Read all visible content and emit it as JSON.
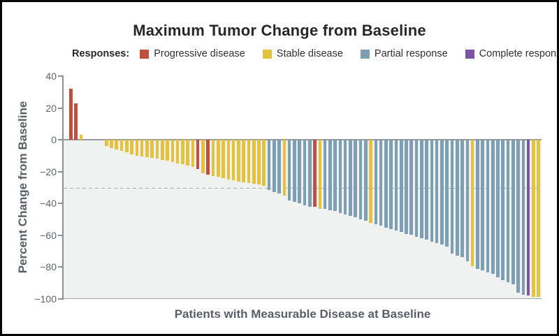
{
  "title": "Maximum Tumor Change from Baseline",
  "legend": {
    "label": "Responses:",
    "items": [
      {
        "label": "Progressive disease",
        "color": "#bf4f3f",
        "key": "PD"
      },
      {
        "label": "Stable disease",
        "color": "#e4c23e",
        "key": "SD"
      },
      {
        "label": "Partial response",
        "color": "#7d9eb3",
        "key": "PR"
      },
      {
        "label": "Complete response",
        "color": "#7b54a5",
        "key": "CR"
      }
    ]
  },
  "chart_data": {
    "type": "bar",
    "subtype": "waterfall",
    "title": "Maximum Tumor Change from Baseline",
    "xlabel": "Patients with Measurable Disease at Baseline",
    "ylabel": "Percent Change from Baseline",
    "ylim": [
      -100,
      40
    ],
    "yticks": [
      40,
      20,
      0,
      -20,
      -40,
      -60,
      -80,
      -100
    ],
    "reference_line": -30,
    "grid": false,
    "legend_position": "top",
    "colors": {
      "PD": "#bf4f3f",
      "SD": "#e4c23e",
      "PR": "#7d9eb3",
      "CR": "#7b54a5"
    },
    "response_names": {
      "PD": "Progressive disease",
      "SD": "Stable disease",
      "PR": "Partial response",
      "CR": "Complete response"
    },
    "bars": [
      {
        "v": 32,
        "r": "PD"
      },
      {
        "v": 23,
        "r": "PD"
      },
      {
        "v": 3,
        "r": "SD"
      },
      {
        "v": 0,
        "r": "SD"
      },
      {
        "v": 0,
        "r": "SD"
      },
      {
        "v": 0,
        "r": "SD"
      },
      {
        "v": 0,
        "r": "SD"
      },
      {
        "v": -4,
        "r": "SD"
      },
      {
        "v": -5,
        "r": "SD"
      },
      {
        "v": -6,
        "r": "SD"
      },
      {
        "v": -7,
        "r": "SD"
      },
      {
        "v": -8,
        "r": "SD"
      },
      {
        "v": -9,
        "r": "SD"
      },
      {
        "v": -10,
        "r": "SD"
      },
      {
        "v": -10.5,
        "r": "SD"
      },
      {
        "v": -11,
        "r": "SD"
      },
      {
        "v": -11.5,
        "r": "SD"
      },
      {
        "v": -12,
        "r": "SD"
      },
      {
        "v": -12.5,
        "r": "SD"
      },
      {
        "v": -13.3,
        "r": "SD"
      },
      {
        "v": -14,
        "r": "SD"
      },
      {
        "v": -14.7,
        "r": "SD"
      },
      {
        "v": -15.5,
        "r": "SD"
      },
      {
        "v": -16.3,
        "r": "SD"
      },
      {
        "v": -17.2,
        "r": "SD"
      },
      {
        "v": -18.3,
        "r": "PD"
      },
      {
        "v": -20.9,
        "r": "SD"
      },
      {
        "v": -21.7,
        "r": "PD"
      },
      {
        "v": -22.7,
        "r": "SD"
      },
      {
        "v": -23.4,
        "r": "SD"
      },
      {
        "v": -24.1,
        "r": "SD"
      },
      {
        "v": -24.9,
        "r": "SD"
      },
      {
        "v": -25.5,
        "r": "SD"
      },
      {
        "v": -26.1,
        "r": "SD"
      },
      {
        "v": -26.6,
        "r": "SD"
      },
      {
        "v": -27.1,
        "r": "SD"
      },
      {
        "v": -27.6,
        "r": "SD"
      },
      {
        "v": -28.1,
        "r": "SD"
      },
      {
        "v": -28.7,
        "r": "SD"
      },
      {
        "v": -31.5,
        "r": "PR"
      },
      {
        "v": -32.7,
        "r": "PR"
      },
      {
        "v": -33.7,
        "r": "PR"
      },
      {
        "v": -35.2,
        "r": "SD"
      },
      {
        "v": -38.1,
        "r": "PR"
      },
      {
        "v": -39,
        "r": "PR"
      },
      {
        "v": -40,
        "r": "PR"
      },
      {
        "v": -41,
        "r": "PR"
      },
      {
        "v": -41.9,
        "r": "PR"
      },
      {
        "v": -42.2,
        "r": "PD"
      },
      {
        "v": -43.2,
        "r": "SD"
      },
      {
        "v": -43.6,
        "r": "PR"
      },
      {
        "v": -44.1,
        "r": "PR"
      },
      {
        "v": -44.8,
        "r": "PR"
      },
      {
        "v": -45.9,
        "r": "PR"
      },
      {
        "v": -46.9,
        "r": "PR"
      },
      {
        "v": -47.8,
        "r": "PR"
      },
      {
        "v": -48.8,
        "r": "PR"
      },
      {
        "v": -49.8,
        "r": "PR"
      },
      {
        "v": -51,
        "r": "PR"
      },
      {
        "v": -52.1,
        "r": "SD"
      },
      {
        "v": -53.1,
        "r": "PR"
      },
      {
        "v": -53.9,
        "r": "PR"
      },
      {
        "v": -55.1,
        "r": "PR"
      },
      {
        "v": -56.1,
        "r": "PR"
      },
      {
        "v": -57.1,
        "r": "PR"
      },
      {
        "v": -58,
        "r": "PR"
      },
      {
        "v": -59,
        "r": "PR"
      },
      {
        "v": -59.8,
        "r": "PR"
      },
      {
        "v": -60.9,
        "r": "PR"
      },
      {
        "v": -61.9,
        "r": "PR"
      },
      {
        "v": -62.9,
        "r": "PR"
      },
      {
        "v": -63.8,
        "r": "PR"
      },
      {
        "v": -64.9,
        "r": "PR"
      },
      {
        "v": -65.8,
        "r": "PR"
      },
      {
        "v": -67,
        "r": "PR"
      },
      {
        "v": -71.5,
        "r": "PR"
      },
      {
        "v": -72.7,
        "r": "PR"
      },
      {
        "v": -73.8,
        "r": "PR"
      },
      {
        "v": -76.5,
        "r": "PR"
      },
      {
        "v": -79.5,
        "r": "SD"
      },
      {
        "v": -81,
        "r": "PR"
      },
      {
        "v": -82,
        "r": "PR"
      },
      {
        "v": -83.3,
        "r": "PR"
      },
      {
        "v": -84,
        "r": "PR"
      },
      {
        "v": -86.5,
        "r": "PR"
      },
      {
        "v": -88,
        "r": "PR"
      },
      {
        "v": -89.5,
        "r": "PR"
      },
      {
        "v": -91,
        "r": "PR"
      },
      {
        "v": -96,
        "r": "PR"
      },
      {
        "v": -97.5,
        "r": "PR"
      },
      {
        "v": -98,
        "r": "CR"
      },
      {
        "v": -98.5,
        "r": "SD"
      },
      {
        "v": -98.5,
        "r": "SD"
      }
    ]
  }
}
